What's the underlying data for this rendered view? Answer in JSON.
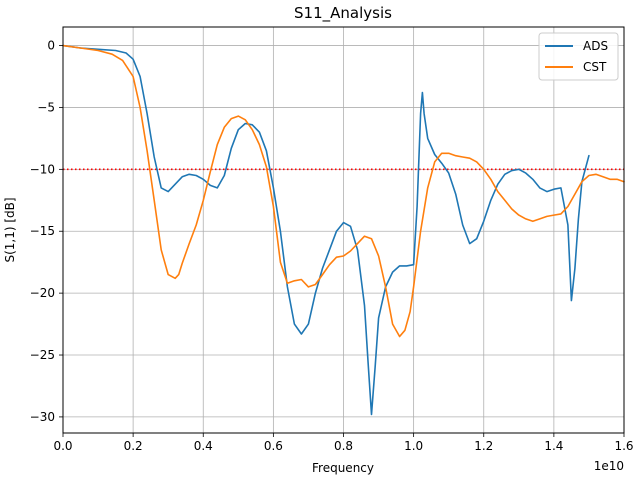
{
  "chart_data": {
    "type": "line",
    "title": "S11_Analysis",
    "xlabel": "Frequency",
    "ylabel": "S(1,1) [dB]",
    "x_offset_label": "1e10",
    "xlim": [
      0.0,
      1.6
    ],
    "ylim": [
      -31.3,
      1.5
    ],
    "x_ticks": [
      0.0,
      0.2,
      0.4,
      0.6,
      0.8,
      1.0,
      1.2,
      1.4,
      1.6
    ],
    "x_tick_labels": [
      "0.0",
      "0.2",
      "0.4",
      "0.6",
      "0.8",
      "1.0",
      "1.2",
      "1.4",
      "1.6"
    ],
    "y_ticks": [
      0,
      -5,
      -10,
      -15,
      -20,
      -25,
      -30
    ],
    "y_tick_labels": [
      "0",
      "−5",
      "−10",
      "−15",
      "−20",
      "−25",
      "−30"
    ],
    "grid": true,
    "legend_position": "top-right",
    "reference_line": {
      "y": -10,
      "color": "#ff0000",
      "style": "dotted"
    },
    "series": [
      {
        "name": "ADS",
        "color": "#1f77b4",
        "x": [
          0.0,
          0.05,
          0.1,
          0.15,
          0.18,
          0.2,
          0.22,
          0.24,
          0.26,
          0.28,
          0.3,
          0.32,
          0.34,
          0.36,
          0.38,
          0.4,
          0.42,
          0.44,
          0.46,
          0.48,
          0.5,
          0.52,
          0.54,
          0.56,
          0.58,
          0.6,
          0.62,
          0.64,
          0.66,
          0.68,
          0.7,
          0.72,
          0.74,
          0.76,
          0.78,
          0.8,
          0.82,
          0.84,
          0.86,
          0.87,
          0.88,
          0.89,
          0.9,
          0.92,
          0.94,
          0.96,
          0.98,
          1.0,
          1.01,
          1.02,
          1.025,
          1.03,
          1.04,
          1.06,
          1.08,
          1.1,
          1.12,
          1.14,
          1.16,
          1.18,
          1.2,
          1.22,
          1.24,
          1.26,
          1.28,
          1.3,
          1.32,
          1.34,
          1.36,
          1.38,
          1.4,
          1.42,
          1.44,
          1.45,
          1.46,
          1.47,
          1.48,
          1.5
        ],
        "y": [
          0.0,
          -0.2,
          -0.3,
          -0.4,
          -0.6,
          -1.1,
          -2.5,
          -5.5,
          -9.0,
          -11.5,
          -11.8,
          -11.2,
          -10.6,
          -10.4,
          -10.5,
          -10.8,
          -11.3,
          -11.5,
          -10.5,
          -8.3,
          -6.8,
          -6.3,
          -6.4,
          -7.0,
          -8.5,
          -11.5,
          -15.0,
          -19.5,
          -22.5,
          -23.3,
          -22.5,
          -20.0,
          -18.0,
          -16.5,
          -15.0,
          -14.3,
          -14.6,
          -16.5,
          -21.0,
          -25.5,
          -29.8,
          -26.0,
          -22.0,
          -19.5,
          -18.3,
          -17.8,
          -17.8,
          -17.7,
          -13.0,
          -5.5,
          -3.8,
          -5.5,
          -7.5,
          -8.8,
          -9.5,
          -10.3,
          -12.0,
          -14.5,
          -16.0,
          -15.6,
          -14.2,
          -12.5,
          -11.2,
          -10.4,
          -10.1,
          -10.0,
          -10.3,
          -10.8,
          -11.5,
          -11.8,
          -11.6,
          -11.5,
          -14.5,
          -20.6,
          -18.0,
          -14.0,
          -11.0,
          -8.9
        ]
      },
      {
        "name": "CST",
        "color": "#ff7f0e",
        "x": [
          0.0,
          0.05,
          0.1,
          0.14,
          0.17,
          0.2,
          0.22,
          0.24,
          0.26,
          0.28,
          0.3,
          0.32,
          0.33,
          0.34,
          0.36,
          0.38,
          0.4,
          0.42,
          0.44,
          0.46,
          0.48,
          0.5,
          0.52,
          0.54,
          0.56,
          0.58,
          0.6,
          0.62,
          0.64,
          0.66,
          0.68,
          0.7,
          0.72,
          0.74,
          0.76,
          0.78,
          0.8,
          0.82,
          0.84,
          0.86,
          0.88,
          0.9,
          0.92,
          0.94,
          0.96,
          0.975,
          0.99,
          1.0,
          1.02,
          1.04,
          1.06,
          1.08,
          1.1,
          1.12,
          1.14,
          1.16,
          1.18,
          1.2,
          1.22,
          1.24,
          1.26,
          1.28,
          1.3,
          1.32,
          1.34,
          1.36,
          1.38,
          1.4,
          1.42,
          1.44,
          1.46,
          1.48,
          1.5,
          1.52,
          1.54,
          1.56,
          1.58,
          1.6
        ],
        "y": [
          0.0,
          -0.2,
          -0.4,
          -0.7,
          -1.2,
          -2.5,
          -5.0,
          -8.5,
          -12.5,
          -16.5,
          -18.5,
          -18.8,
          -18.5,
          -17.6,
          -16.0,
          -14.5,
          -12.5,
          -10.2,
          -8.0,
          -6.6,
          -5.9,
          -5.7,
          -6.0,
          -6.8,
          -8.0,
          -9.8,
          -13.0,
          -17.5,
          -19.2,
          -19.0,
          -18.9,
          -19.5,
          -19.3,
          -18.5,
          -17.7,
          -17.1,
          -17.0,
          -16.6,
          -16.0,
          -15.4,
          -15.6,
          -17.0,
          -19.5,
          -22.5,
          -23.5,
          -23.0,
          -21.5,
          -19.5,
          -15.0,
          -11.5,
          -9.4,
          -8.7,
          -8.7,
          -8.9,
          -9.0,
          -9.1,
          -9.4,
          -10.0,
          -10.8,
          -11.8,
          -12.5,
          -13.2,
          -13.7,
          -14.0,
          -14.2,
          -14.0,
          -13.8,
          -13.7,
          -13.6,
          -13.0,
          -12.0,
          -11.0,
          -10.5,
          -10.4,
          -10.6,
          -10.8,
          -10.8,
          -11.0
        ]
      }
    ]
  }
}
